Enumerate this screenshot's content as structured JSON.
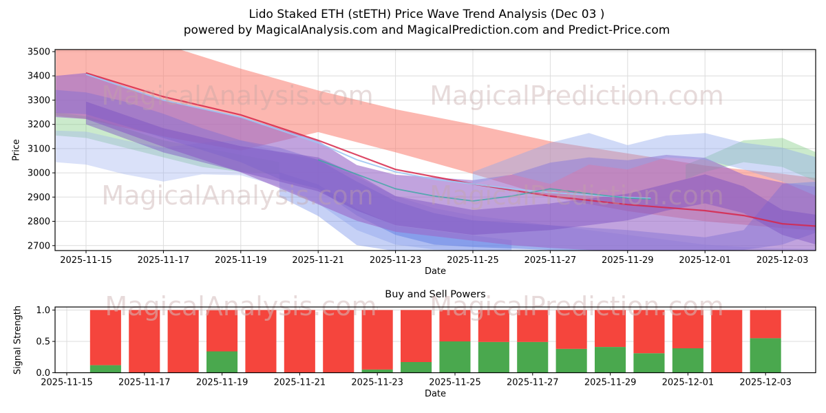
{
  "title": {
    "line1": "Lido Staked ETH (stETH) Price Wave Trend Analysis (Dec 03 )",
    "line2": "powered by MagicalAnalysis.com and MagicalPrediction.com and Predict-Price.com"
  },
  "watermarks": {
    "analysis": "MagicalAnalysis.com",
    "prediction": "MagicalPrediction.com"
  },
  "colors": {
    "grid": "#dcdcdc",
    "spine": "#000000",
    "watermark_top": "#c4a5a5",
    "watermark_bottom": "#d4bcbc",
    "bar_red": "#f5453d",
    "bar_green": "#4aa84e"
  },
  "chart_data": [
    {
      "type": "area",
      "name": "price-wave-trend",
      "xlabel": "Date",
      "ylabel": "Price",
      "x_unit": "days_since_2025-11-15",
      "x_tick_days": [
        0,
        2,
        4,
        6,
        8,
        10,
        12,
        14,
        16,
        18
      ],
      "x_tick_labels": [
        "2025-11-15",
        "2025-11-17",
        "2025-11-19",
        "2025-11-21",
        "2025-11-23",
        "2025-11-25",
        "2025-11-27",
        "2025-11-29",
        "2025-12-01",
        "2025-12-03"
      ],
      "y_ticks": [
        2700,
        2800,
        2900,
        3000,
        3100,
        3200,
        3300,
        3400,
        3500
      ],
      "ylim": [
        2679,
        3509
      ],
      "grid": true,
      "bands": [
        {
          "name": "salmon-forecast-band",
          "color": "#f97c6f",
          "opacity": 0.55,
          "x": [
            -0.78,
            0,
            2,
            4,
            6,
            8,
            10,
            12,
            14,
            16,
            18,
            18.88
          ],
          "top": [
            3560,
            3555,
            3530,
            3430,
            3340,
            3262,
            3200,
            3130,
            3080,
            3030,
            2996,
            2978
          ],
          "bottom": [
            3235,
            3222,
            3150,
            3092,
            3168,
            3085,
            2996,
            2900,
            2842,
            2800,
            2772,
            2762
          ]
        },
        {
          "name": "green-band-left",
          "color": "#77c97a",
          "opacity": 0.38,
          "x": [
            -0.78,
            0,
            1,
            2,
            3,
            4,
            5
          ],
          "top": [
            3250,
            3234,
            3184,
            3134,
            3104,
            3074,
            3044
          ],
          "bottom": [
            3154,
            3144,
            3104,
            3064,
            3024,
            3004,
            2994
          ]
        },
        {
          "name": "green-band-right",
          "color": "#77c97a",
          "opacity": 0.38,
          "x": [
            15.5,
            16,
            17,
            18,
            18.88
          ],
          "top": [
            3034,
            3064,
            3134,
            3144,
            3084
          ],
          "bottom": [
            2974,
            3004,
            3044,
            3024,
            2964
          ]
        },
        {
          "name": "lightblue-band-left",
          "color": "#9db1ee",
          "opacity": 0.38,
          "x": [
            -0.78,
            0,
            1,
            2,
            3,
            4,
            5,
            6,
            7,
            8,
            9,
            10,
            11,
            12,
            13,
            14,
            15,
            16,
            17,
            18,
            18.88
          ],
          "top": [
            3174,
            3170,
            3134,
            3104,
            3124,
            3134,
            3084,
            3054,
            2984,
            2904,
            2854,
            2824,
            2804,
            2784,
            2764,
            2744,
            2724,
            2704,
            2694,
            2689,
            2686
          ],
          "bottom": [
            3044,
            3034,
            2994,
            2964,
            2994,
            2990,
            2944,
            2874,
            2764,
            2704,
            2684,
            2678,
            2676,
            2676,
            2676,
            2676,
            2676,
            2676,
            2676,
            2676,
            2676
          ]
        },
        {
          "name": "royalblue-band",
          "color": "#4c6fe0",
          "opacity": 0.42,
          "x": [
            -0.78,
            0,
            1,
            2,
            3,
            4,
            5,
            6,
            7,
            8,
            9,
            10,
            12,
            14,
            16,
            17,
            18,
            18.88
          ],
          "top": [
            3342,
            3332,
            3294,
            3244,
            3184,
            3134,
            3104,
            3054,
            2964,
            2884,
            2834,
            2804,
            2784,
            2764,
            2734,
            2764,
            2954,
            2964
          ],
          "bottom": [
            3247,
            3242,
            3194,
            3144,
            3094,
            3044,
            2974,
            2934,
            2824,
            2744,
            2704,
            2694,
            2682,
            2679,
            2679,
            2682,
            2704,
            2754
          ]
        },
        {
          "name": "blue-dip-band",
          "color": "#5b7ce6",
          "opacity": 0.35,
          "x": [
            5,
            6,
            7,
            8,
            9,
            10,
            11
          ],
          "top": [
            3002,
            2952,
            2852,
            2782,
            2762,
            2742,
            2722
          ],
          "bottom": [
            2902,
            2822,
            2702,
            2677,
            2677,
            2677,
            2677
          ]
        },
        {
          "name": "purple-band",
          "color": "#9b6bc9",
          "opacity": 0.62,
          "x": [
            -0.78,
            0,
            2,
            4,
            5,
            6,
            7,
            8,
            10,
            11,
            12,
            13,
            14,
            15,
            16,
            17,
            18,
            18.88
          ],
          "top": [
            3400,
            3412,
            3302,
            3232,
            3182,
            3132,
            3032,
            2992,
            2970,
            2992,
            3042,
            3064,
            3052,
            3074,
            3062,
            2992,
            2960,
            2942
          ],
          "bottom": [
            3230,
            3222,
            3107,
            3002,
            2937,
            2870,
            2802,
            2757,
            2720,
            2702,
            2690,
            2682,
            2677,
            2677,
            2677,
            2677,
            2677,
            2677
          ]
        },
        {
          "name": "purple-core-band",
          "color": "#7a4fc0",
          "opacity": 0.45,
          "x": [
            0,
            2,
            4,
            6,
            7,
            8,
            10,
            12,
            14,
            15,
            16,
            17,
            18,
            18.88
          ],
          "top": [
            3294,
            3184,
            3110,
            3064,
            2994,
            2904,
            2847,
            2874,
            2914,
            2954,
            2994,
            2944,
            2847,
            2827
          ],
          "bottom": [
            3200,
            3084,
            3004,
            2924,
            2844,
            2784,
            2744,
            2764,
            2804,
            2844,
            2874,
            2834,
            2744,
            2704
          ]
        },
        {
          "name": "lightblue-band-right",
          "color": "#8fa7ec",
          "opacity": 0.42,
          "x": [
            10,
            11,
            12,
            13,
            14,
            15,
            16,
            17,
            18,
            18.88
          ],
          "top": [
            3004,
            3064,
            3124,
            3164,
            3114,
            3154,
            3164,
            3124,
            3104,
            3064
          ],
          "bottom": [
            2954,
            2994,
            2954,
            3034,
            3014,
            3064,
            3054,
            3014,
            2964,
            2904
          ]
        }
      ],
      "lines": [
        {
          "name": "crimson-trend-line",
          "color": "#d6274a",
          "opacity": 0.85,
          "width": 2.2,
          "x": [
            0,
            2,
            4,
            6,
            8,
            10,
            12,
            14,
            16,
            17,
            18,
            18.88
          ],
          "y": [
            3412,
            3314,
            3239,
            3134,
            3014,
            2954,
            2904,
            2869,
            2844,
            2824,
            2790,
            2780
          ]
        },
        {
          "name": "skyblue-trend-line",
          "color": "#9ec7f2",
          "opacity": 0.9,
          "width": 2,
          "x": [
            0,
            2,
            4,
            6,
            7,
            8,
            9,
            10,
            11,
            12,
            13,
            14,
            14.6
          ],
          "y": [
            3407,
            3300,
            3230,
            3124,
            3054,
            3004,
            2974,
            2954,
            2934,
            2919,
            2909,
            2899,
            2895
          ]
        },
        {
          "name": "teal-trend-line",
          "color": "#3aa8a2",
          "opacity": 0.8,
          "width": 1.8,
          "x": [
            6,
            7,
            8,
            9,
            10,
            11,
            12,
            13,
            14,
            14.6
          ],
          "y": [
            3054,
            2994,
            2934,
            2904,
            2884,
            2904,
            2934,
            2914,
            2896,
            2892
          ]
        }
      ]
    },
    {
      "type": "bar",
      "name": "buy-sell-powers",
      "title": "Buy and Sell Powers",
      "xlabel": "Date",
      "ylabel": "Signal Strength",
      "stacked": true,
      "bar_width_days": 0.8,
      "x_tick_days": [
        0,
        2,
        4,
        6,
        8,
        10,
        12,
        14,
        16,
        18
      ],
      "x_tick_labels": [
        "2025-11-15",
        "2025-11-17",
        "2025-11-19",
        "2025-11-21",
        "2025-11-23",
        "2025-11-25",
        "2025-11-27",
        "2025-11-29",
        "2025-12-01",
        "2025-12-03"
      ],
      "y_ticks": [
        0.0,
        0.5,
        1.0
      ],
      "ylim": [
        0,
        1.05
      ],
      "categories": [
        "2025-11-16",
        "2025-11-17",
        "2025-11-18",
        "2025-11-19",
        "2025-11-20",
        "2025-11-21",
        "2025-11-22",
        "2025-11-23",
        "2025-11-24",
        "2025-11-25",
        "2025-11-26",
        "2025-11-27",
        "2025-11-28",
        "2025-11-29",
        "2025-11-30",
        "2025-12-01",
        "2025-12-02",
        "2025-12-03"
      ],
      "bar_day_offsets": [
        1,
        2,
        3,
        4,
        5,
        6,
        7,
        8,
        9,
        10,
        11,
        12,
        13,
        14,
        15,
        16,
        17,
        18
      ],
      "series": [
        {
          "name": "Buy Power",
          "color": "#4aa84e",
          "values": [
            0.12,
            0,
            0,
            0.34,
            0,
            0,
            0,
            0.05,
            0.17,
            0.5,
            0.49,
            0.49,
            0.38,
            0.41,
            0.31,
            0.39,
            0,
            0.55
          ]
        },
        {
          "name": "Sell Power",
          "color": "#f5453d",
          "values": [
            0.88,
            1,
            1,
            0.66,
            1,
            1,
            1,
            0.95,
            0.83,
            0.5,
            0.51,
            0.51,
            0.62,
            0.59,
            0.69,
            0.61,
            1,
            0.45
          ]
        }
      ]
    }
  ]
}
